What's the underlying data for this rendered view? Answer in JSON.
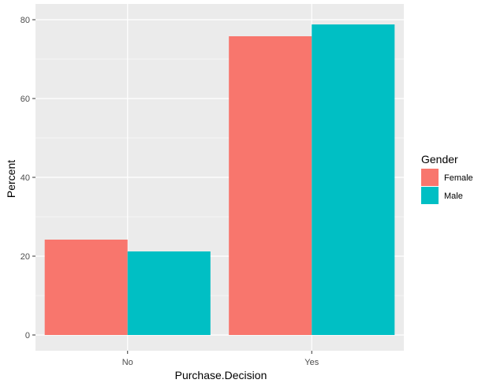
{
  "chart_data": {
    "type": "bar",
    "categories": [
      "No",
      "Yes"
    ],
    "series": [
      {
        "name": "Female",
        "values": [
          24.2,
          75.8
        ],
        "color": "#F8766D"
      },
      {
        "name": "Male",
        "values": [
          21.2,
          78.8
        ],
        "color": "#00BFC4"
      }
    ],
    "xlabel": "Purchase.Decision",
    "ylabel": "Percent",
    "ylim": [
      -4,
      84
    ],
    "yticks": [
      0,
      20,
      40,
      60,
      80
    ],
    "grid": true,
    "legend": {
      "title": "Gender",
      "placement": "right"
    },
    "panel_color": "#EBEBEB",
    "grid_color": "#FFFFFF"
  }
}
